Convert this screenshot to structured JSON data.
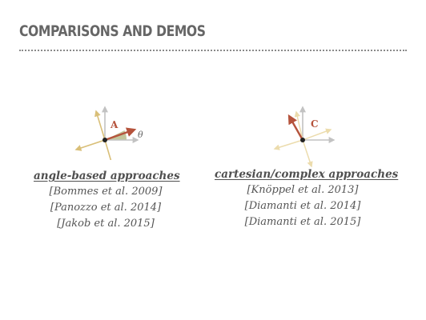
{
  "slide": {
    "title": "COMPARISONS AND DEMOS"
  },
  "figures": {
    "angle_based": {
      "vector_label": "A",
      "angle_label": "θ",
      "accent_color": "#b5533c",
      "axis_color": "#c2c2c2",
      "cross_color": "#d9bf78"
    },
    "cartesian": {
      "vector_label": "C",
      "accent_color": "#b5533c",
      "axis_color": "#c2c2c2",
      "cross_color": "#ecdcad"
    }
  },
  "columns": [
    {
      "heading": "angle-based approaches",
      "refs": [
        "[Bommes et al. 2009]",
        "[Panozzo et al. 2014]",
        "[Jakob et al. 2015]"
      ]
    },
    {
      "heading": "cartesian/complex approaches",
      "refs": [
        "[Knöppel et al. 2013]",
        "[Diamanti et al. 2014]",
        "[Diamanti et al. 2015]"
      ]
    }
  ]
}
